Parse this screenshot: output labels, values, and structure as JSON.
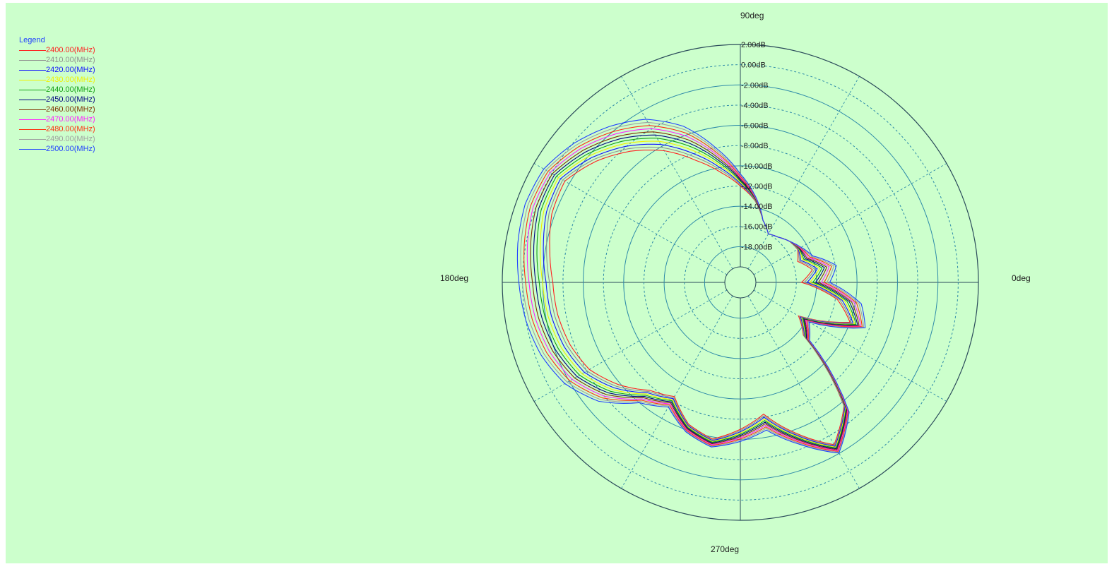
{
  "colors": {
    "background": "#ccffcc",
    "grid_solid": "#2d8aa8",
    "grid_dashed": "#2d8aa8",
    "outer": "#2a4a5a"
  },
  "chart_data": {
    "type": "polar",
    "legend": {
      "title": "Legend",
      "placement": "top-left"
    },
    "angle_labels": [
      {
        "angle": 90,
        "label": "90deg"
      },
      {
        "angle": 180,
        "label": "180deg"
      },
      {
        "angle": 0,
        "label": "0deg"
      },
      {
        "angle": 270,
        "label": "270deg"
      }
    ],
    "radial_range": [
      -20,
      2
    ],
    "radial_ticks": [
      {
        "value": 2,
        "label": "2.00dB"
      },
      {
        "value": 0,
        "label": "0.00dB"
      },
      {
        "value": -2,
        "label": "-2.00dB"
      },
      {
        "value": -4,
        "label": "-4.00dB"
      },
      {
        "value": -6,
        "label": "-6.00dB"
      },
      {
        "value": -8,
        "label": "-8.00dB"
      },
      {
        "value": -10,
        "label": "-10.00dB"
      },
      {
        "value": -12,
        "label": "-12.00dB"
      },
      {
        "value": -14,
        "label": "-14.00dB"
      },
      {
        "value": -16,
        "label": "-16.00dB"
      },
      {
        "value": -18,
        "label": "-18.00dB"
      }
    ],
    "angle_grid_step": 30,
    "series": [
      {
        "name": "2400.00(MHz)",
        "color": "#ff2020",
        "k": 1.0
      },
      {
        "name": "2410.00(MHz)",
        "color": "#909090",
        "k": 0.92
      },
      {
        "name": "2420.00(MHz)",
        "color": "#1010ff",
        "k": 0.84
      },
      {
        "name": "2430.00(MHz)",
        "color": "#f0f000",
        "k": 0.76
      },
      {
        "name": "2440.00(MHz)",
        "color": "#10a010",
        "k": 0.68
      },
      {
        "name": "2450.00(MHz)",
        "color": "#000080",
        "k": 0.6
      },
      {
        "name": "2460.00(MHz)",
        "color": "#803000",
        "k": 0.52
      },
      {
        "name": "2470.00(MHz)",
        "color": "#ff20ff",
        "k": 0.44
      },
      {
        "name": "2480.00(MHz)",
        "color": "#ff3010",
        "k": 0.36
      },
      {
        "name": "2490.00(MHz)",
        "color": "#a0a0a0",
        "k": 0.28
      },
      {
        "name": "2500.00(MHz)",
        "color": "#2040ff",
        "k": 0.2
      }
    ],
    "base_pattern_deg_db": [
      [
        0,
        -12.0
      ],
      [
        10,
        -11.3
      ],
      [
        20,
        -13.5
      ],
      [
        30,
        -14.5
      ],
      [
        40,
        -15.2
      ],
      [
        50,
        -15.7
      ],
      [
        60,
        -16.0
      ],
      [
        70,
        -15.0
      ],
      [
        80,
        -12.8
      ],
      [
        90,
        -10.5
      ],
      [
        100,
        -7.5
      ],
      [
        110,
        -4.2
      ],
      [
        120,
        -2.0
      ],
      [
        130,
        -0.6
      ],
      [
        140,
        0.6
      ],
      [
        150,
        1.5
      ],
      [
        160,
        1.8
      ],
      [
        170,
        1.6
      ],
      [
        180,
        1.2
      ],
      [
        190,
        0.8
      ],
      [
        200,
        0.2
      ],
      [
        210,
        -0.8
      ],
      [
        220,
        -2.6
      ],
      [
        230,
        -5.6
      ],
      [
        240,
        -7.0
      ],
      [
        250,
        -5.6
      ],
      [
        260,
        -4.8
      ],
      [
        270,
        -5.5
      ],
      [
        280,
        -6.3
      ],
      [
        290,
        -4.2
      ],
      [
        300,
        -1.8
      ],
      [
        310,
        -4.6
      ],
      [
        320,
        -12.4
      ],
      [
        330,
        -13.4
      ],
      [
        340,
        -8.0
      ],
      [
        350,
        -8.8
      ],
      [
        360,
        -12.0
      ]
    ],
    "variation_deg_db": [
      [
        0,
        -3.5
      ],
      [
        10,
        -3.0
      ],
      [
        20,
        -2.0
      ],
      [
        30,
        -0.5
      ],
      [
        40,
        0
      ],
      [
        50,
        0
      ],
      [
        60,
        0
      ],
      [
        70,
        0
      ],
      [
        80,
        -0.5
      ],
      [
        90,
        -1.5
      ],
      [
        100,
        -3.0
      ],
      [
        110,
        -4.5
      ],
      [
        120,
        -4.5
      ],
      [
        130,
        -4.0
      ],
      [
        140,
        -3.5
      ],
      [
        150,
        -3.0
      ],
      [
        160,
        -3.5
      ],
      [
        170,
        -4.0
      ],
      [
        180,
        -4.2
      ],
      [
        190,
        -4.0
      ],
      [
        200,
        -3.8
      ],
      [
        210,
        -3.5
      ],
      [
        220,
        -3.2
      ],
      [
        230,
        -2.0
      ],
      [
        240,
        -1.5
      ],
      [
        250,
        -1.0
      ],
      [
        260,
        -1.0
      ],
      [
        270,
        -1.5
      ],
      [
        280,
        -2.0
      ],
      [
        290,
        -1.5
      ],
      [
        300,
        -1.2
      ],
      [
        310,
        -1.0
      ],
      [
        320,
        -1.0
      ],
      [
        330,
        -1.5
      ],
      [
        340,
        -2.0
      ],
      [
        350,
        -3.0
      ],
      [
        360,
        -3.5
      ]
    ]
  }
}
